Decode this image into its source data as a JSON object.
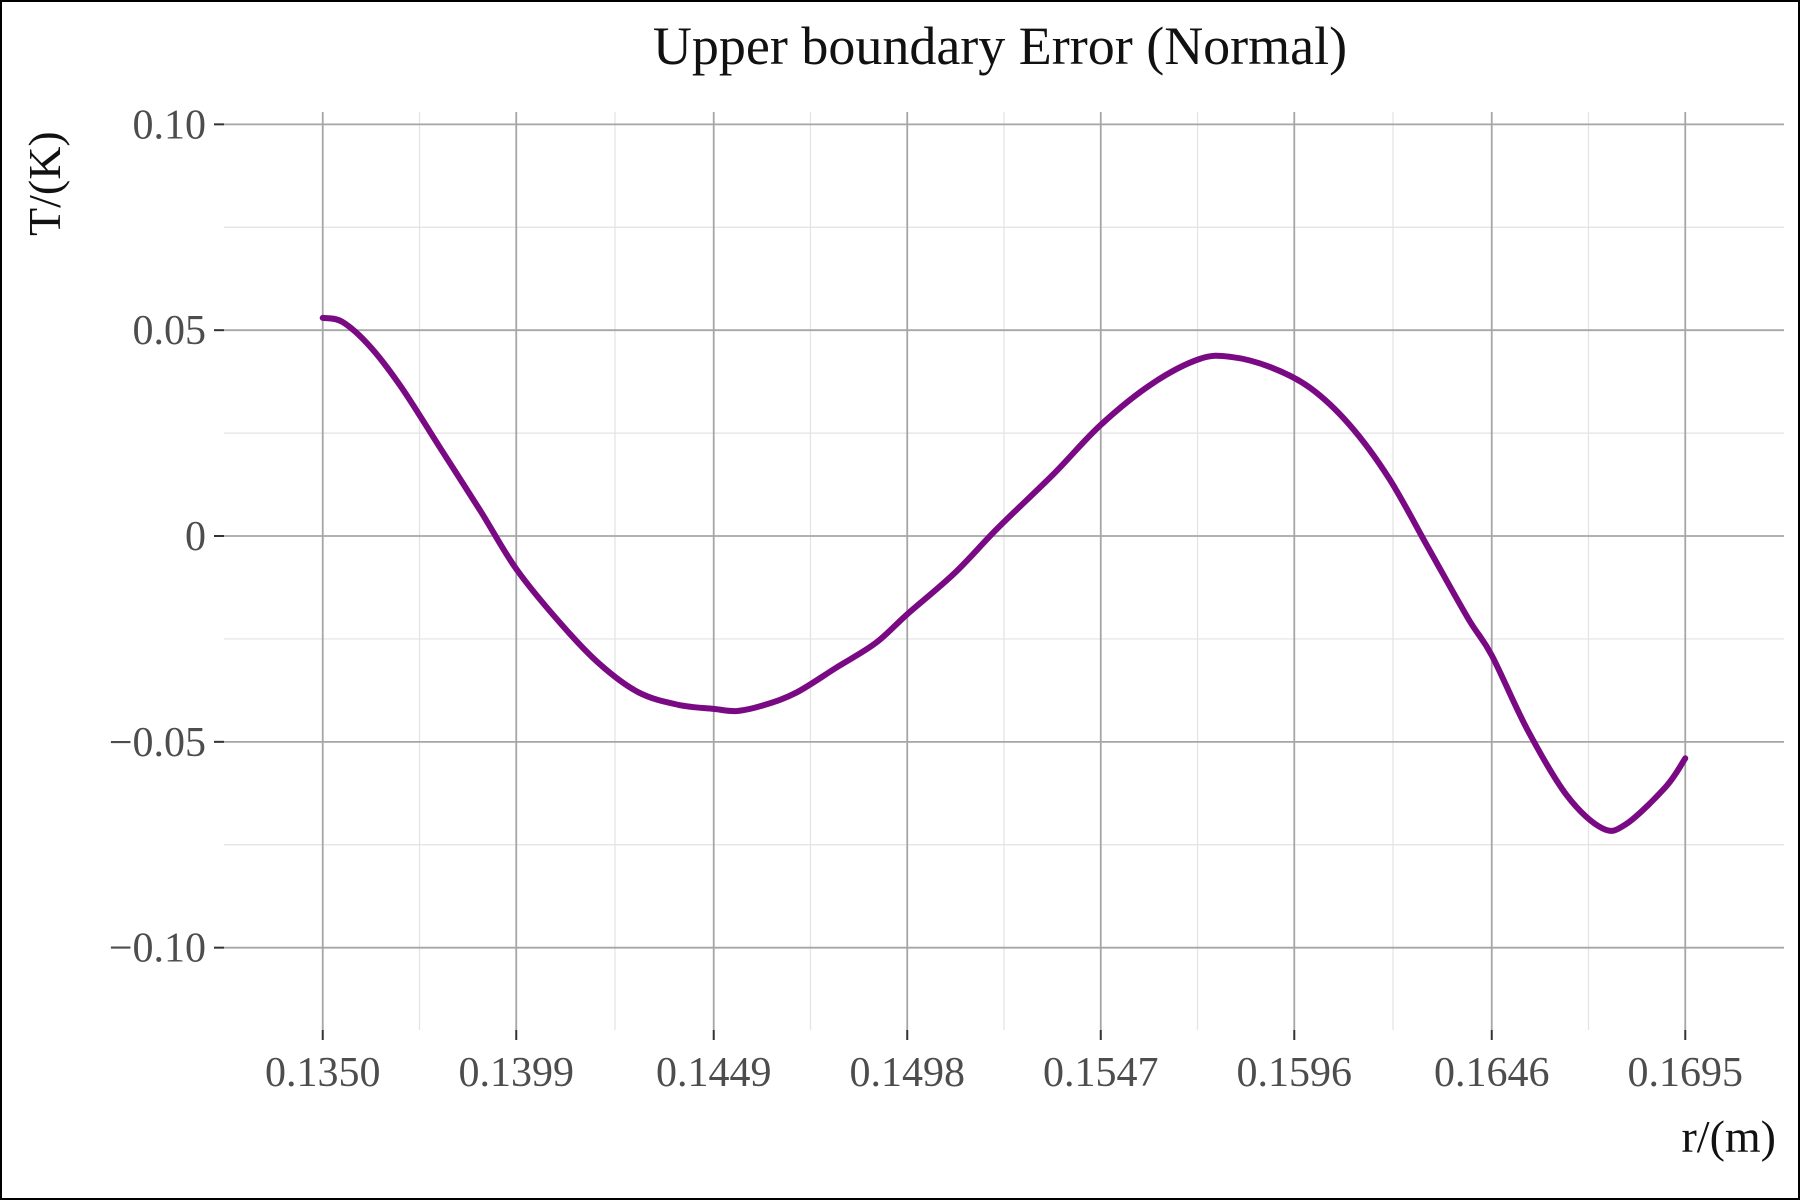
{
  "chart_data": {
    "type": "line",
    "title": "Upper boundary Error (Normal)",
    "xlabel": "r/(m)",
    "ylabel": "T/(K)",
    "xlim": [
      0.1325,
      0.172
    ],
    "ylim": [
      -0.12,
      0.103
    ],
    "x_ticks": [
      0.135,
      0.1399,
      0.1449,
      0.1498,
      0.1547,
      0.1596,
      0.1646,
      0.1695
    ],
    "x_tick_labels": [
      "0.1350",
      "0.1399",
      "0.1449",
      "0.1498",
      "0.1547",
      "0.1596",
      "0.1646",
      "0.1695"
    ],
    "y_ticks": [
      0.1,
      0.05,
      0,
      -0.05,
      -0.1
    ],
    "y_tick_labels": [
      "0.10",
      "0.05",
      "0",
      "−0.05",
      "−0.10"
    ],
    "grid": true,
    "series": [
      {
        "color": "#7a0a84",
        "x": [
          0.135,
          0.1355,
          0.1362,
          0.137,
          0.138,
          0.139,
          0.1399,
          0.141,
          0.142,
          0.143,
          0.144,
          0.1449,
          0.1455,
          0.1462,
          0.147,
          0.148,
          0.149,
          0.1498,
          0.151,
          0.1521,
          0.1535,
          0.1547,
          0.156,
          0.1572,
          0.158,
          0.159,
          0.16,
          0.161,
          0.162,
          0.163,
          0.164,
          0.1646,
          0.1655,
          0.1665,
          0.1674,
          0.168,
          0.169,
          0.1695
        ],
        "y": [
          0.053,
          0.052,
          0.046,
          0.036,
          0.021,
          0.006,
          -0.008,
          -0.021,
          -0.031,
          -0.038,
          -0.041,
          -0.042,
          -0.0425,
          -0.041,
          -0.038,
          -0.032,
          -0.026,
          -0.019,
          -0.009,
          0.002,
          0.015,
          0.027,
          0.037,
          0.043,
          0.0435,
          0.041,
          0.036,
          0.027,
          0.014,
          -0.003,
          -0.02,
          -0.029,
          -0.047,
          -0.063,
          -0.071,
          -0.07,
          -0.061,
          -0.054
        ]
      }
    ]
  }
}
